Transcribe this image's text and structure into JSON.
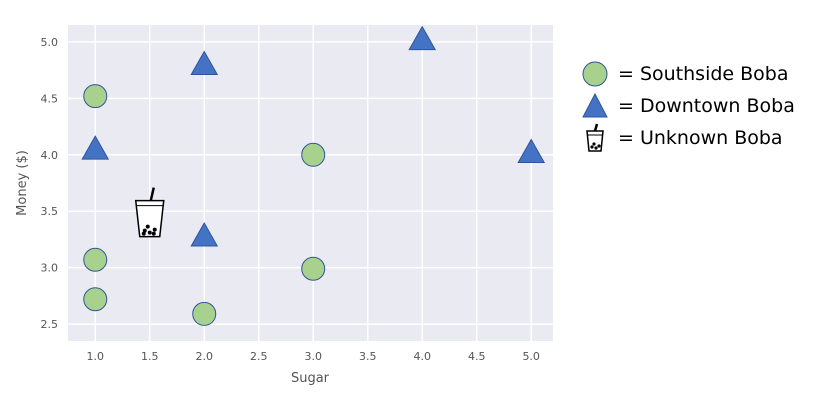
{
  "chart_data": {
    "type": "scatter",
    "xlabel": "Sugar",
    "ylabel": "Money ($)",
    "xlim": [
      0.75,
      5.2
    ],
    "ylim": [
      2.35,
      5.15
    ],
    "xticks": [
      "1.0",
      "1.5",
      "2.0",
      "2.5",
      "3.0",
      "3.5",
      "4.0",
      "4.5",
      "5.0"
    ],
    "yticks": [
      "2.5",
      "3.0",
      "3.5",
      "4.0",
      "4.5",
      "5.0"
    ],
    "grid": true,
    "legend_placement": "right",
    "series": [
      {
        "name": "= Southside Boba",
        "marker": "circle",
        "color": "#a9d18e",
        "edge_color": "#2f5597",
        "points": [
          [
            1.0,
            4.52
          ],
          [
            1.0,
            3.07
          ],
          [
            1.0,
            2.72
          ],
          [
            2.0,
            2.59
          ],
          [
            3.0,
            4.0
          ],
          [
            3.0,
            2.99
          ]
        ]
      },
      {
        "name": "= Downtown Boba",
        "marker": "triangle",
        "color": "#4472c4",
        "edge_color": "#2f5597",
        "points": [
          [
            1.0,
            4.05
          ],
          [
            2.0,
            4.8
          ],
          [
            2.0,
            3.28
          ],
          [
            4.0,
            5.02
          ],
          [
            5.0,
            4.02
          ]
        ]
      },
      {
        "name": "= Unknown Boba",
        "marker": "boba-cup-icon",
        "points": [
          [
            1.5,
            3.47
          ]
        ]
      }
    ]
  }
}
